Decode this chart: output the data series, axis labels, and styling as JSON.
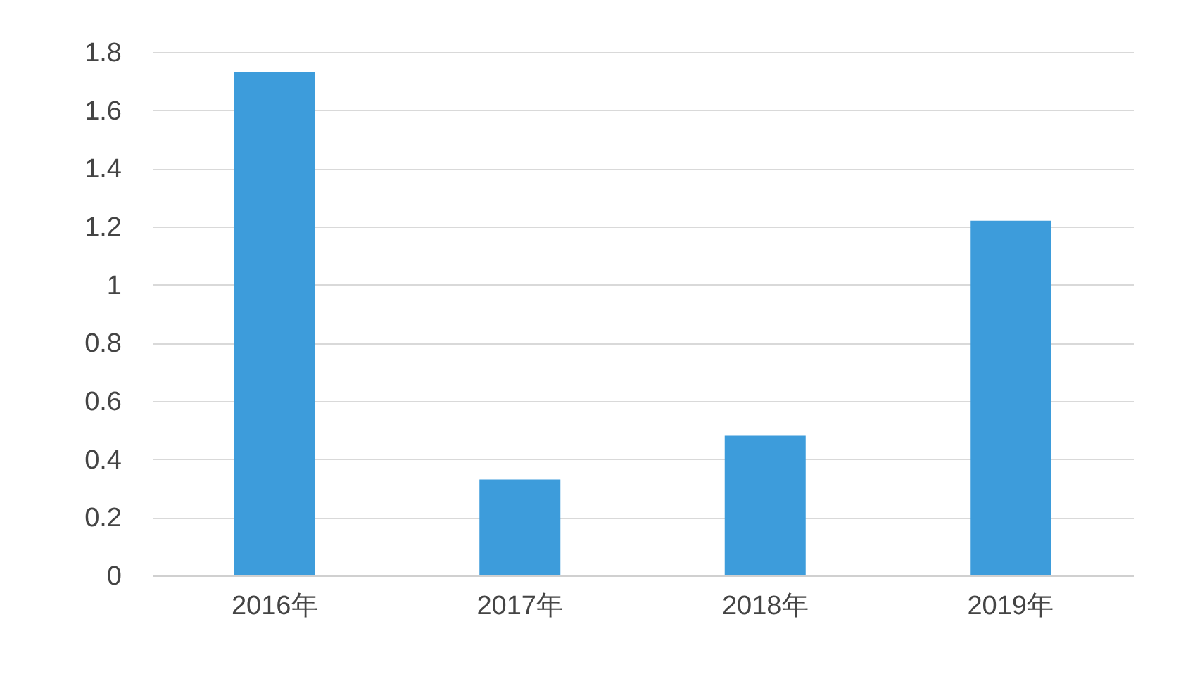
{
  "chart_data": {
    "type": "bar",
    "categories": [
      "2016年",
      "2017年",
      "2018年",
      "2019年"
    ],
    "values": [
      1.73,
      0.33,
      0.48,
      1.22
    ],
    "color": "#3d9cdb",
    "ylim": [
      0,
      1.8
    ],
    "yticks": [
      0,
      0.2,
      0.4,
      0.6,
      0.8,
      1,
      1.2,
      1.4,
      1.6,
      1.8
    ],
    "grid": "y"
  }
}
